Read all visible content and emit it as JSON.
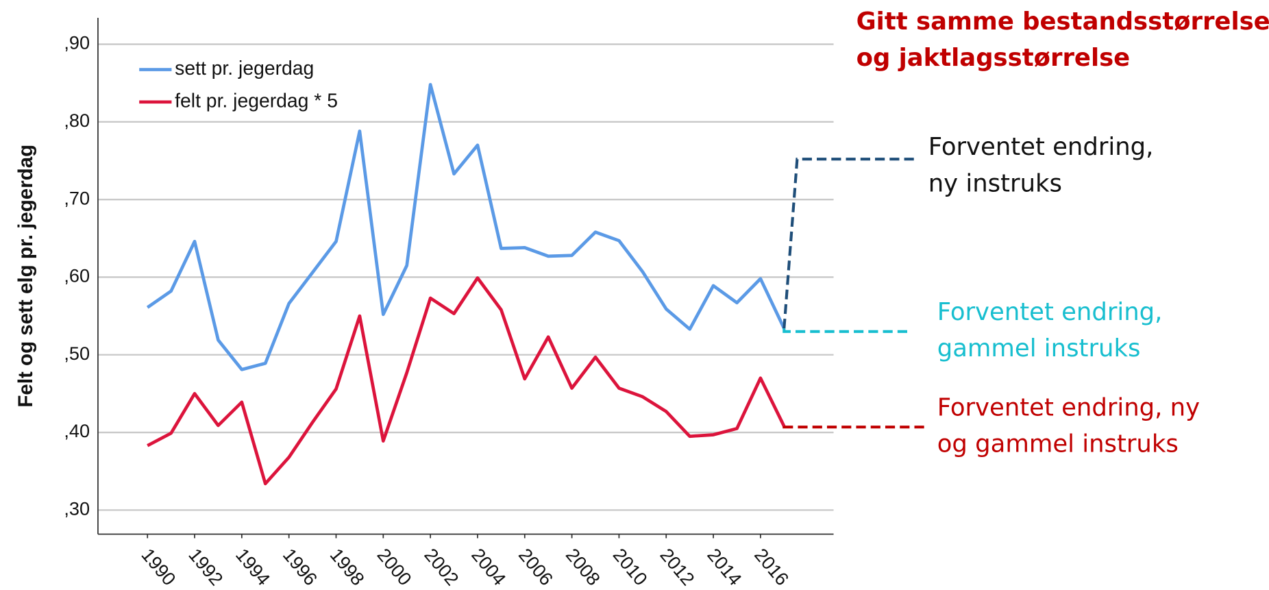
{
  "chart_data": {
    "type": "line",
    "title_lines": [
      "Gitt samme bestandsstørrelse",
      "og jaktlagsstørrelse"
    ],
    "title_color": "#c00000",
    "ylabel": "Felt og sett elg pr. jegerdag",
    "x": [
      1990,
      1991,
      1992,
      1993,
      1994,
      1995,
      1996,
      1997,
      1998,
      1999,
      2000,
      2001,
      2002,
      2003,
      2004,
      2005,
      2006,
      2007,
      2008,
      2009,
      2010,
      2011,
      2012,
      2013,
      2014,
      2015,
      2016,
      2017
    ],
    "xlim": [
      1987.9,
      2019.1
    ],
    "xticks": [
      1990,
      1992,
      1994,
      1996,
      1998,
      2000,
      2002,
      2004,
      2006,
      2008,
      2010,
      2012,
      2014,
      2016
    ],
    "ylim": [
      0.269,
      0.934
    ],
    "yticks": [
      {
        "value": 0.3,
        "label": ",30"
      },
      {
        "value": 0.4,
        "label": ",40"
      },
      {
        "value": 0.5,
        "label": ",50"
      },
      {
        "value": 0.6,
        "label": ",60"
      },
      {
        "value": 0.7,
        "label": ",70"
      },
      {
        "value": 0.8,
        "label": ",80"
      },
      {
        "value": 0.9,
        "label": ",90"
      }
    ],
    "grid": true,
    "legend": "top-left",
    "series": [
      {
        "name": "sett pr. jegerdag",
        "color": "#5b9ae6",
        "values": [
          0.561,
          0.582,
          0.646,
          0.519,
          0.481,
          0.489,
          0.566,
          0.606,
          0.646,
          0.788,
          0.552,
          0.615,
          0.848,
          0.733,
          0.77,
          0.637,
          0.638,
          0.627,
          0.628,
          0.658,
          0.647,
          0.607,
          0.559,
          0.533,
          0.589,
          0.567,
          0.598,
          0.534
        ]
      },
      {
        "name": "felt pr. jegerdag * 5",
        "color": "#dc143c",
        "values": [
          0.383,
          0.399,
          0.45,
          0.409,
          0.439,
          0.334,
          0.368,
          0.413,
          0.456,
          0.55,
          0.389,
          0.477,
          0.573,
          0.553,
          0.599,
          0.558,
          0.469,
          0.523,
          0.457,
          0.497,
          0.457,
          0.446,
          0.427,
          0.395,
          0.397,
          0.405,
          0.47,
          0.408
        ]
      }
    ],
    "annotations": [
      {
        "text_lines": [
          "Forventet endring,",
          "ny instruks"
        ],
        "value": 0.752,
        "color": "#1f4e79",
        "text_color": "#111111"
      },
      {
        "text_lines": [
          "Forventet endring,",
          "gammel instruks"
        ],
        "value": 0.53,
        "color": "#17becf",
        "text_color": "#17becf"
      },
      {
        "text_lines": [
          "Forventet endring, ny",
          "og gammel instruks"
        ],
        "value": 0.407,
        "color": "#c00000",
        "text_color": "#c00000"
      }
    ]
  }
}
